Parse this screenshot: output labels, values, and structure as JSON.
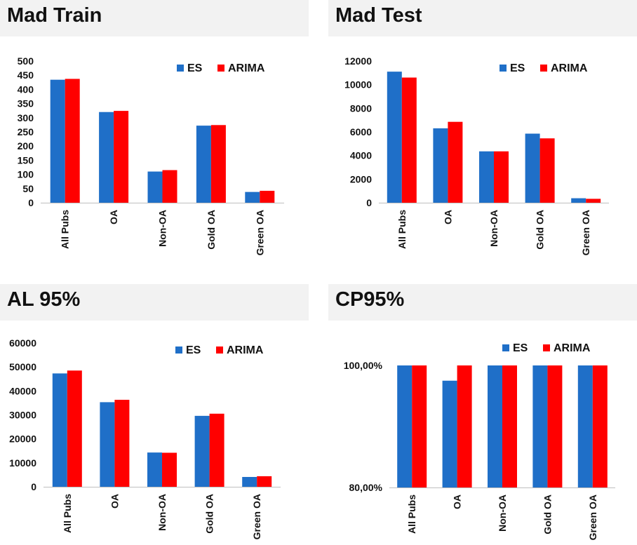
{
  "colors": {
    "es": "#1f6fc8",
    "arima": "#ff0000",
    "axis": "#bfbfbf",
    "header_bg": "#f2f2f2"
  },
  "chart_data": [
    {
      "type": "bar",
      "title": "Mad Train",
      "categories": [
        "All Pubs",
        "OA",
        "Non-OA",
        "Gold OA",
        "Green OA"
      ],
      "yticks": [
        "500",
        "450",
        "400",
        "350",
        "300",
        "250",
        "200",
        "150",
        "100",
        "50",
        "0"
      ],
      "ylim": [
        0,
        500
      ],
      "series": [
        {
          "name": "ES",
          "values": [
            434,
            320,
            110,
            272,
            38
          ]
        },
        {
          "name": "ARIMA",
          "values": [
            437,
            324,
            115,
            274,
            42
          ]
        }
      ],
      "legend": "top-right",
      "grid": false
    },
    {
      "type": "bar",
      "title": "Mad Test",
      "categories": [
        "All Pubs",
        "OA",
        "Non-OA",
        "Gold OA",
        "Green OA"
      ],
      "yticks": [
        "12000",
        "10000",
        "8000",
        "6000",
        "4000",
        "2000",
        "0"
      ],
      "ylim": [
        0,
        12000
      ],
      "series": [
        {
          "name": "ES",
          "values": [
            11100,
            6300,
            4350,
            5850,
            380
          ]
        },
        {
          "name": "ARIMA",
          "values": [
            10600,
            6850,
            4350,
            5450,
            330
          ]
        }
      ],
      "legend": "top-right",
      "grid": false
    },
    {
      "type": "bar",
      "title": "AL 95%",
      "categories": [
        "All Pubs",
        "OA",
        "Non-OA",
        "Gold OA",
        "Green OA"
      ],
      "yticks": [
        "60000",
        "50000",
        "40000",
        "30000",
        "20000",
        "10000",
        "0"
      ],
      "ylim": [
        0,
        60000
      ],
      "series": [
        {
          "name": "ES",
          "values": [
            47300,
            35300,
            14300,
            29600,
            4100
          ]
        },
        {
          "name": "ARIMA",
          "values": [
            48500,
            36300,
            14200,
            30500,
            4400
          ]
        }
      ],
      "legend": "top-right",
      "grid": false
    },
    {
      "type": "bar",
      "title": "CP95%",
      "categories": [
        "All Pubs",
        "OA",
        "Non-OA",
        "Gold OA",
        "Green OA"
      ],
      "yticks": [
        "100,00%",
        "80,00%"
      ],
      "ylim": [
        80,
        100
      ],
      "series": [
        {
          "name": "ES",
          "values": [
            100,
            97.5,
            100,
            100,
            100
          ]
        },
        {
          "name": "ARIMA",
          "values": [
            100,
            100,
            100,
            100,
            100
          ]
        }
      ],
      "legend": "top-right",
      "grid": false
    }
  ]
}
